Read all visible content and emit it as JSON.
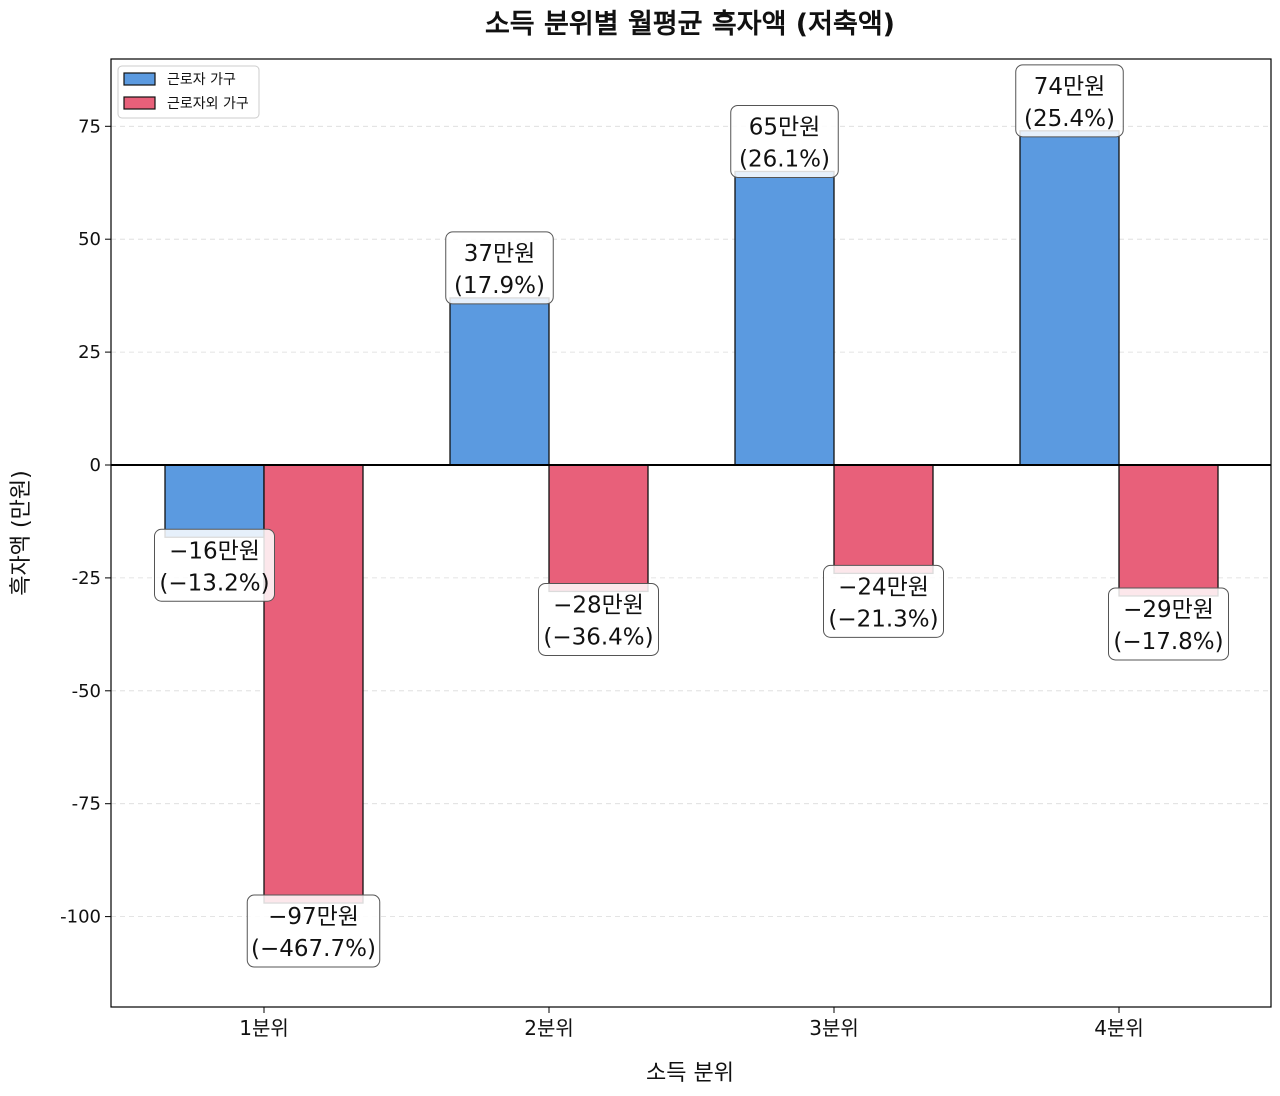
{
  "chart_data": {
    "type": "bar",
    "title": "소득 분위별 월평균 흑자액 (저축액)",
    "xlabel": "소득 분위",
    "ylabel": "흑자액 (만원)",
    "ylim": [
      -120,
      90
    ],
    "yticks": [
      75,
      50,
      25,
      0,
      -25,
      -50,
      -75,
      -100
    ],
    "ytick_labels": [
      "75",
      "50",
      "25",
      "0",
      "-25",
      "-50",
      "-75",
      "-100"
    ],
    "grid": true,
    "legend_position": "top-left",
    "categories": [
      "1분위",
      "2분위",
      "3분위",
      "4분위"
    ],
    "series": [
      {
        "name": "근로자 가구",
        "color": "#5b9ae0",
        "values": [
          -16,
          37,
          65,
          74
        ],
        "labels": [
          "−16만원\n(−13.2%)",
          "37만원\n(17.9%)",
          "65만원\n(26.1%)",
          "74만원\n(25.4%)"
        ]
      },
      {
        "name": "근로자외 가구",
        "color": "#e8607a",
        "values": [
          -97,
          -28,
          -24,
          -29
        ],
        "labels": [
          "−97만원\n(−467.7%)",
          "−28만원\n(−36.4%)",
          "−24만원\n(−21.3%)",
          "−29만원\n(−17.8%)"
        ]
      }
    ]
  }
}
